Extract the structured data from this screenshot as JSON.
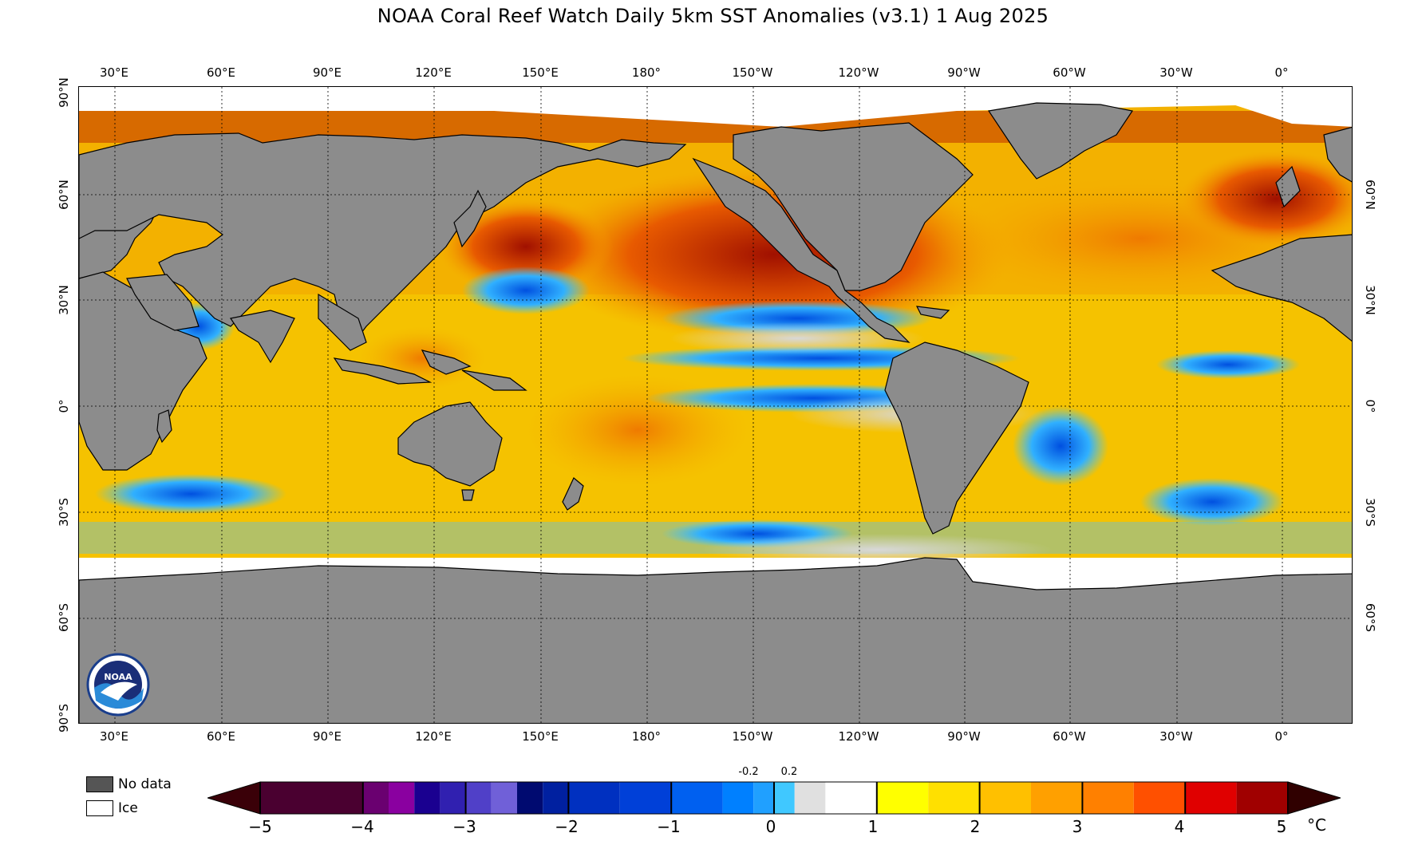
{
  "title": "NOAA Coral Reef Watch Daily 5km SST Anomalies  (v3.1)   1 Aug 2025",
  "longitude_labels": [
    "30°E",
    "60°E",
    "90°E",
    "120°E",
    "150°E",
    "180°",
    "150°W",
    "120°W",
    "90°W",
    "60°W",
    "30°W",
    "0°"
  ],
  "latitude_labels_left": [
    "90°N",
    "60°N",
    "30°N",
    "0°",
    "30°S",
    "60°S",
    "90°S"
  ],
  "latitude_labels_right": [
    "60°N",
    "30°N",
    "0°",
    "30°S",
    "60°S"
  ],
  "legend": {
    "no_data": {
      "label": "No data",
      "color": "#555555"
    },
    "ice": {
      "label": "Ice",
      "color": "#ffffff"
    }
  },
  "colorbar": {
    "tick_labels": [
      "−5",
      "−4",
      "−3",
      "−2",
      "−1",
      "0",
      "1",
      "2",
      "3",
      "4",
      "5"
    ],
    "small_labels": [
      "-0.2",
      "0.2"
    ],
    "unit": "°C",
    "colors": [
      "#3a0000",
      "#4a0030",
      "#6a0070",
      "#8a00a0",
      "#1a0090",
      "#3020b0",
      "#5040c8",
      "#7060d8",
      "#000a70",
      "#0020a0",
      "#0030c0",
      "#0040d8",
      "#0060f0",
      "#0080ff",
      "#20a0ff",
      "#40c8ff",
      "#e0e0e0",
      "#ffffff",
      "#ffff00",
      "#ffe000",
      "#ffc000",
      "#ffa000",
      "#ff8000",
      "#ff5000",
      "#e00000",
      "#a00000",
      "#600000",
      "#300000"
    ]
  },
  "colors": {
    "land": "#8c8c8c",
    "ocean_base": "#f5c000",
    "warm": "#e86a00",
    "hot": "#a01000",
    "cool": "#40c0ff",
    "cold": "#0030d0",
    "ice": "#ffffff",
    "neutral": "#d8d8d8"
  },
  "logo_text": "NOAA"
}
